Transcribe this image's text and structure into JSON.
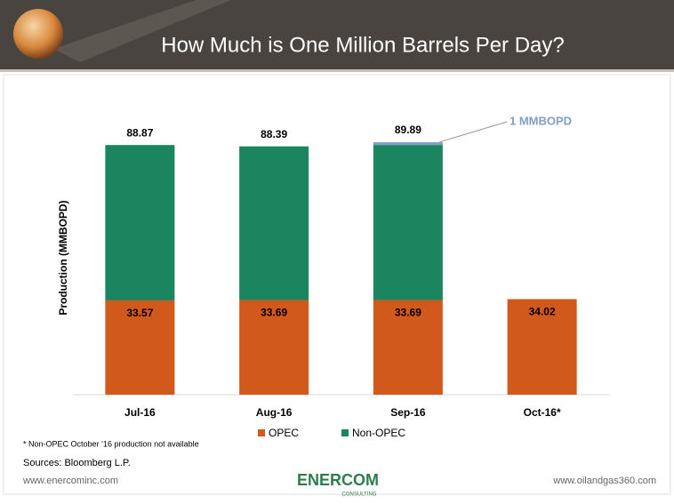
{
  "chart_data": {
    "type": "stacked_bar",
    "title": "How Much is One Million Barrels Per Day?",
    "y_label": "Production (MMBOPD)",
    "categories": [
      "Jul-16",
      "Aug-16",
      "Sep-16",
      "Oct-16*"
    ],
    "series": [
      {
        "name": "OPEC",
        "color": "#d2591c",
        "values": [
          33.57,
          33.69,
          33.69,
          34.02
        ]
      },
      {
        "name": "Non-OPEC",
        "color": "#1b855f",
        "values": [
          55.3,
          54.7,
          55.2,
          null
        ]
      },
      {
        "name": "1 MMBOPD",
        "color": "#7f9fc8",
        "values": [
          null,
          null,
          1,
          null
        ],
        "callout": true
      }
    ],
    "totals": [
      88.87,
      88.39,
      89.89,
      null
    ],
    "ylim": [
      0,
      100
    ],
    "footnote": "* Non-OPEC October ‘16 production not available",
    "sources": "Sources: Bloomberg L.P.",
    "footer_left": "www.enercominc.com",
    "footer_right": "www.oilandgas360.com",
    "logo": "ENERCOM",
    "logo_sub": "CONSULTING"
  }
}
